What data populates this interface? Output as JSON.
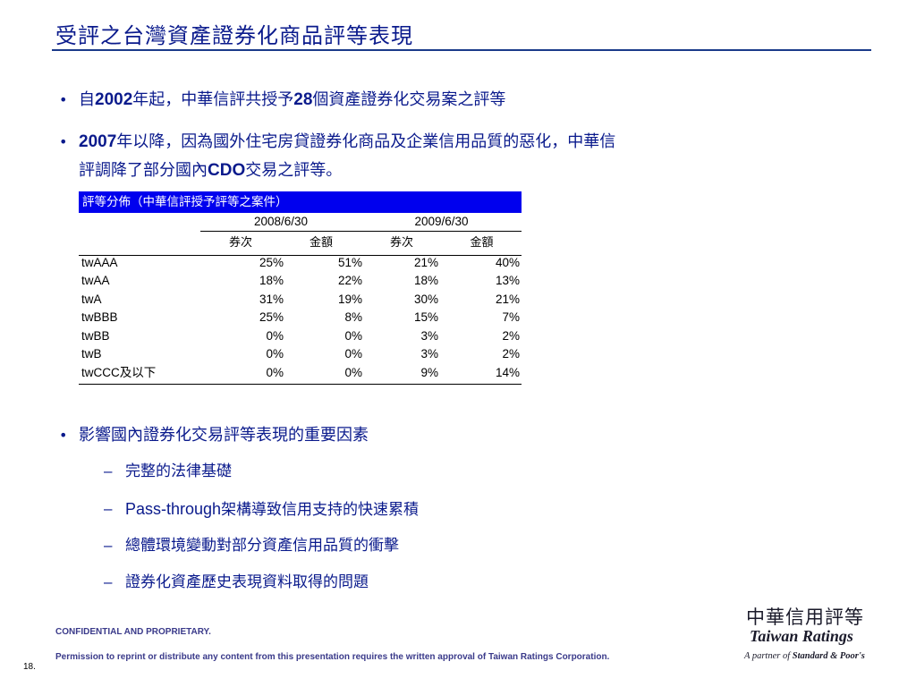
{
  "slide": {
    "title": "受評之台灣資產證券化商品評等表現",
    "page_number": "18."
  },
  "bullets": [
    {
      "dot": "•",
      "parts": [
        "自",
        "2002",
        "年起，中華信評共授予",
        "28",
        "個資產證券化交易案之評等"
      ]
    },
    {
      "dot": "•",
      "line1_parts": [
        "2007",
        "年以降，因為國外住宅房貸證券化商品及企業信用品質的惡化，中華信"
      ],
      "line2_parts": [
        "評調降了部分國內",
        "CDO",
        "交易之評等。"
      ]
    },
    {
      "dot": "•",
      "text": "影響國內證券化交易評等表現的重要因素"
    }
  ],
  "sub_items": [
    {
      "dash": "–",
      "text": "完整的法律基礎"
    },
    {
      "dash": "–",
      "en": "Pass-through",
      "text": "架構導致信用支持的快速累積"
    },
    {
      "dash": "–",
      "text": "總體環境變動對部分資產信用品質的衝擊"
    },
    {
      "dash": "–",
      "text": "證券化資產歷史表現資料取得的問題"
    }
  ],
  "table": {
    "header": "評等分佈（中華信評授予評等之案件）",
    "years": [
      "2008/6/30",
      "2009/6/30"
    ],
    "subheaders": [
      "券次",
      "金額",
      "券次",
      "金額"
    ],
    "rows": [
      {
        "label": "twAAA",
        "values": [
          "25%",
          "51%",
          "21%",
          "40%"
        ]
      },
      {
        "label": "twAA",
        "values": [
          "18%",
          "22%",
          "18%",
          "13%"
        ]
      },
      {
        "label": "twA",
        "values": [
          "31%",
          "19%",
          "30%",
          "21%"
        ]
      },
      {
        "label": "twBBB",
        "values": [
          "25%",
          "8%",
          "15%",
          "7%"
        ]
      },
      {
        "label": "twBB",
        "values": [
          "0%",
          "0%",
          "3%",
          "2%"
        ]
      },
      {
        "label": "twB",
        "values": [
          "0%",
          "0%",
          "3%",
          "2%"
        ]
      },
      {
        "label": "twCCC及以下",
        "values": [
          "0%",
          "0%",
          "9%",
          "14%"
        ]
      }
    ]
  },
  "footer": {
    "confidential": "CONFIDENTIAL AND PROPRIETARY.",
    "permission": "Permission to reprint or distribute any content from this presentation requires the written approval of Taiwan Ratings Corporation."
  },
  "logo": {
    "cn": "中華信用評等",
    "en": "Taiwan Ratings",
    "partner_prefix": "A partner of ",
    "partner_name": "Standard & Poor's"
  }
}
